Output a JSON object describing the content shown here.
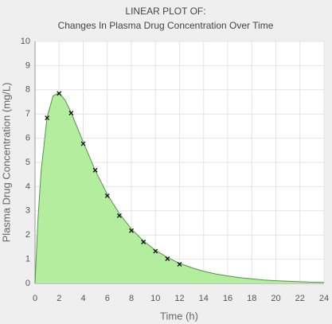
{
  "chart_data": {
    "type": "area",
    "title": "LINEAR PLOT OF:",
    "subtitle": "Changes In Plasma Drug Concentration Over Time",
    "x_label": "Time (h)",
    "y_label": "Plasma Drug Concentration (mg/L)",
    "xlim": [
      0,
      24
    ],
    "xticks": [
      0,
      2,
      4,
      6,
      8,
      10,
      12,
      14,
      16,
      18,
      20,
      22,
      24
    ],
    "ylim": [
      0,
      10
    ],
    "yticks": [
      0,
      1,
      2,
      3,
      4,
      5,
      6,
      7,
      8,
      9,
      10
    ],
    "grid": true,
    "series": [
      {
        "type": "area",
        "color": "#b3ee9f",
        "line_color": "#5b8f4e",
        "x": [
          0,
          0.25,
          0.5,
          1,
          1.5,
          2,
          2.5,
          3,
          4,
          5,
          6,
          7,
          8,
          9,
          10,
          11,
          12,
          13,
          14,
          15,
          16,
          17,
          18,
          19,
          20,
          21,
          22,
          23,
          24
        ],
        "values": [
          0,
          2.68,
          4.61,
          6.86,
          7.75,
          7.87,
          7.57,
          7.06,
          5.84,
          4.67,
          3.68,
          2.89,
          2.25,
          1.76,
          1.37,
          1.07,
          0.83,
          0.65,
          0.5,
          0.39,
          0.31,
          0.24,
          0.19,
          0.14,
          0.11,
          0.09,
          0.07,
          0.05,
          0.04
        ]
      },
      {
        "type": "scatter",
        "color": "#111111",
        "x": [
          1,
          2,
          3,
          4,
          5,
          6,
          7,
          8,
          9,
          10,
          11,
          12
        ],
        "values": [
          6.84,
          7.85,
          7.04,
          5.77,
          4.68,
          3.62,
          2.8,
          2.18,
          1.71,
          1.33,
          1.02,
          0.79
        ]
      }
    ]
  }
}
